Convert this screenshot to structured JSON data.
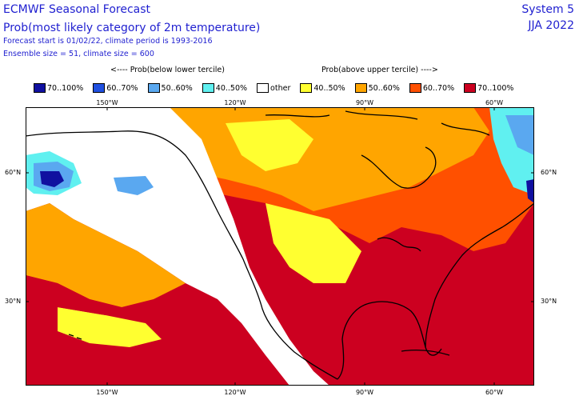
{
  "header": {
    "title": "ECMWF Seasonal Forecast",
    "subtitle": "Prob(most likely category of 2m temperature)",
    "forecast_info": "Forecast start is 01/02/22, climate period is 1993-2016",
    "ensemble_info": "Ensemble size = 51, climate size = 600",
    "system": "System 5",
    "season": "JJA 2022"
  },
  "legend": {
    "left_heading": "<---- Prob(below lower tercile)",
    "right_heading": "Prob(above upper tercile) ---->",
    "items": [
      {
        "label": "70..100%",
        "color": "#1010a0"
      },
      {
        "label": "60..70%",
        "color": "#2050e0"
      },
      {
        "label": "50..60%",
        "color": "#5aa8f0"
      },
      {
        "label": "40..50%",
        "color": "#60f0f0"
      },
      {
        "label": "other",
        "color": "#ffffff"
      },
      {
        "label": "40..50%",
        "color": "#ffff30"
      },
      {
        "label": "50..60%",
        "color": "#ffa500"
      },
      {
        "label": "60..70%",
        "color": "#ff5000"
      },
      {
        "label": "70..100%",
        "color": "#cc0020"
      }
    ]
  },
  "map": {
    "region": "North America and adjacent oceans",
    "lon_labels": {
      "top": [
        "150°W",
        "120°W",
        "90°W",
        "60°W"
      ],
      "bottom": [
        "150°W",
        "120°W",
        "90°W",
        "60°W"
      ]
    },
    "lat_labels": {
      "left": [
        "60°N",
        "30°N"
      ],
      "right": [
        "60°N",
        "30°N"
      ]
    }
  }
}
